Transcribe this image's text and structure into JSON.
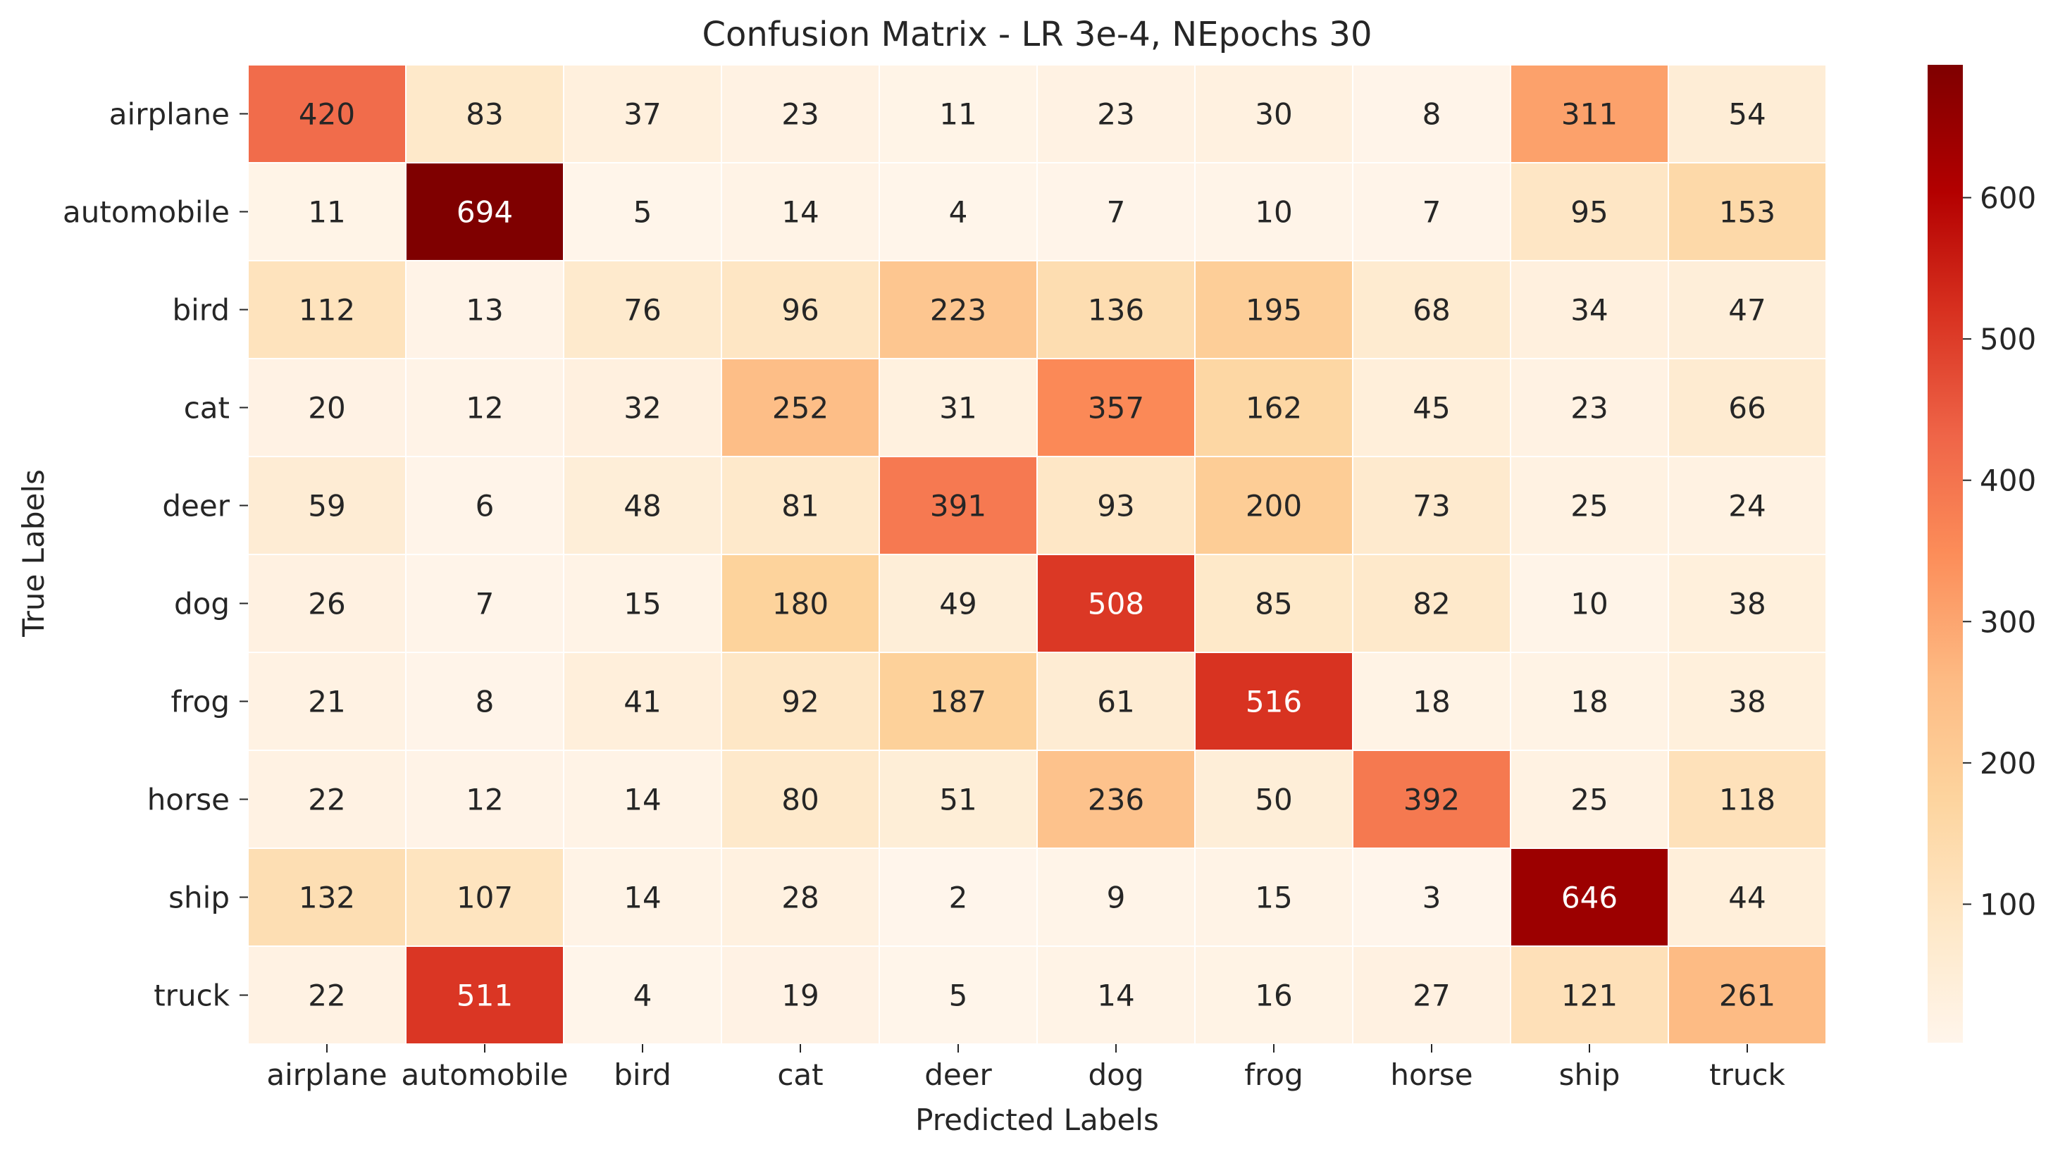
{
  "chart_data": {
    "type": "heatmap",
    "title": "Confusion Matrix - LR 3e-4, NEpochs 30",
    "xlabel": "Predicted Labels",
    "ylabel": "True Labels",
    "x_categories": [
      "airplane",
      "automobile",
      "bird",
      "cat",
      "deer",
      "dog",
      "frog",
      "horse",
      "ship",
      "truck"
    ],
    "y_categories": [
      "airplane",
      "automobile",
      "bird",
      "cat",
      "deer",
      "dog",
      "frog",
      "horse",
      "ship",
      "truck"
    ],
    "values": [
      [
        420,
        83,
        37,
        23,
        11,
        23,
        30,
        8,
        311,
        54
      ],
      [
        11,
        694,
        5,
        14,
        4,
        7,
        10,
        7,
        95,
        153
      ],
      [
        112,
        13,
        76,
        96,
        223,
        136,
        195,
        68,
        34,
        47
      ],
      [
        20,
        12,
        32,
        252,
        31,
        357,
        162,
        45,
        23,
        66
      ],
      [
        59,
        6,
        48,
        81,
        391,
        93,
        200,
        73,
        25,
        24
      ],
      [
        26,
        7,
        15,
        180,
        49,
        508,
        85,
        82,
        10,
        38
      ],
      [
        21,
        8,
        41,
        92,
        187,
        61,
        516,
        18,
        18,
        38
      ],
      [
        22,
        12,
        14,
        80,
        51,
        236,
        50,
        392,
        25,
        118
      ],
      [
        132,
        107,
        14,
        28,
        2,
        9,
        15,
        3,
        646,
        44
      ],
      [
        22,
        511,
        4,
        19,
        5,
        14,
        16,
        27,
        121,
        261
      ]
    ],
    "colormap": "OrRd",
    "colorbar": {
      "range": [
        2,
        694
      ],
      "ticks": [
        100,
        200,
        300,
        400,
        500,
        600
      ],
      "tick_labels": [
        "100",
        "200",
        "300",
        "400",
        "500",
        "600"
      ]
    },
    "annotations": "cell values shown in each cell",
    "grid": false,
    "legend": "colorbar right"
  },
  "colors": {
    "cell_border": "#ffffff",
    "text_dark": "#262626",
    "text_light": "#ffffff"
  }
}
